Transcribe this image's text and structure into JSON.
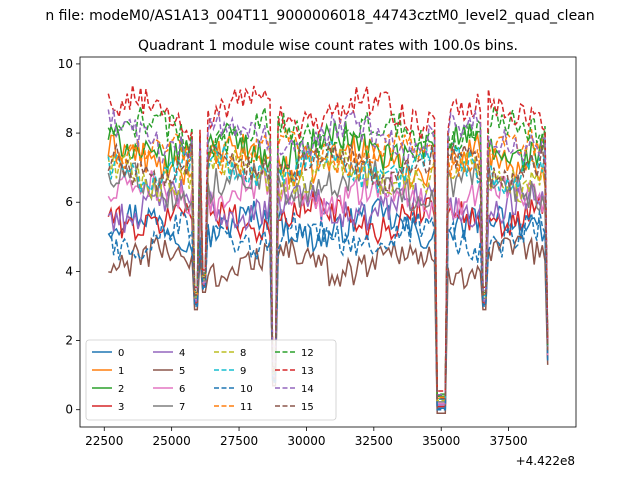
{
  "figure": {
    "suptitle": "n file: modeM0/AS1A13_004T11_9000006018_44743cztM0_level2_quad_clean",
    "title": "Quadrant 1 module wise count rates with 100.0s bins.",
    "x_offset_label": "+4.422e8"
  },
  "chart_data": {
    "type": "line",
    "title": "Quadrant 1 module wise count rates with 100.0s bins.",
    "xlabel": "",
    "ylabel": "",
    "x_offset": "+4.422e8",
    "xlim": [
      21600,
      40000
    ],
    "ylim": [
      -0.5,
      10.2
    ],
    "xticks": [
      22500,
      25000,
      27500,
      30000,
      32500,
      35000,
      37500
    ],
    "xtick_labels": [
      "22500",
      "25000",
      "27500",
      "30000",
      "32500",
      "35000",
      "37500"
    ],
    "yticks": [
      0,
      2,
      4,
      6,
      8,
      10
    ],
    "ytick_labels": [
      "0",
      "2",
      "4",
      "6",
      "8",
      "10"
    ],
    "grid": false,
    "legend": "lower-left, 4 columns",
    "x_start": 22650,
    "x_end": 38950,
    "bin": 100,
    "dips": [
      {
        "x": [
          25800,
          26000
        ],
        "y": 3.0
      },
      {
        "x": [
          26150,
          26300
        ],
        "y": 3.5
      },
      {
        "x": [
          28700,
          28900
        ],
        "y": 0.8
      },
      {
        "x": [
          34850,
          35150
        ],
        "y": 0.0
      },
      {
        "x": [
          36550,
          36650
        ],
        "y": 3.0
      },
      {
        "x": [
          38950,
          38950
        ],
        "y": 1.4
      }
    ],
    "series": [
      {
        "name": "0",
        "level": 5.3,
        "color": "#1f77b4",
        "dash": "solid"
      },
      {
        "name": "1",
        "level": 7.2,
        "color": "#ff7f0e",
        "dash": "solid"
      },
      {
        "name": "2",
        "level": 7.6,
        "color": "#2ca02c",
        "dash": "solid"
      },
      {
        "name": "3",
        "level": 5.6,
        "color": "#d62728",
        "dash": "solid"
      },
      {
        "name": "4",
        "level": 5.9,
        "color": "#9467bd",
        "dash": "solid"
      },
      {
        "name": "5",
        "level": 4.3,
        "color": "#8c564b",
        "dash": "solid"
      },
      {
        "name": "6",
        "level": 6.2,
        "color": "#e377c2",
        "dash": "solid"
      },
      {
        "name": "7",
        "level": 6.5,
        "color": "#7f7f7f",
        "dash": "solid"
      },
      {
        "name": "8",
        "level": 6.8,
        "color": "#bcbd22",
        "dash": "dashed"
      },
      {
        "name": "9",
        "level": 7.0,
        "color": "#17becf",
        "dash": "dashed"
      },
      {
        "name": "10",
        "level": 5.0,
        "color": "#1f77b4",
        "dash": "dashed"
      },
      {
        "name": "11",
        "level": 7.4,
        "color": "#ff7f0e",
        "dash": "dashed"
      },
      {
        "name": "12",
        "level": 8.0,
        "color": "#2ca02c",
        "dash": "dashed"
      },
      {
        "name": "13",
        "level": 8.6,
        "color": "#d62728",
        "dash": "dashed"
      },
      {
        "name": "14",
        "level": 7.9,
        "color": "#9467bd",
        "dash": "dashed"
      },
      {
        "name": "15",
        "level": 7.1,
        "color": "#8c564b",
        "dash": "dashed"
      }
    ]
  }
}
